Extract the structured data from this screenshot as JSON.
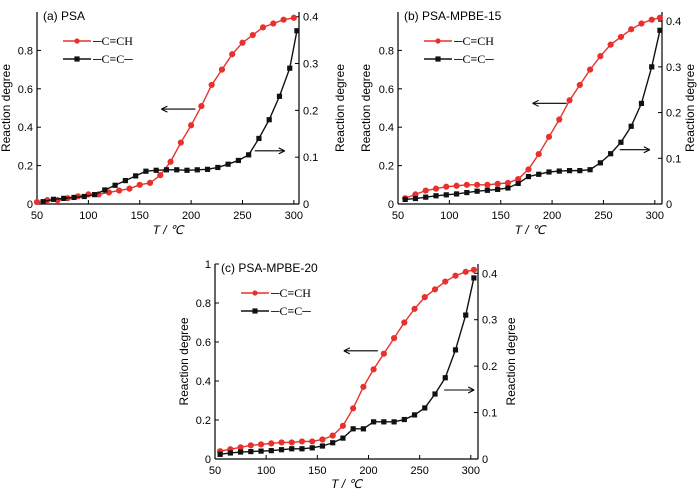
{
  "chart_data": [
    {
      "type": "line",
      "title": "(a)  PSA",
      "xlabel": "T / ℃",
      "ylabel": "Reaction degree",
      "y2label": "Reaction degree",
      "xlim": [
        50,
        305
      ],
      "ylim": [
        0,
        1.0
      ],
      "y2lim": [
        0,
        0.41
      ],
      "xticks": [
        50,
        100,
        150,
        200,
        250,
        300
      ],
      "yticks": [
        0,
        0.2,
        0.4,
        0.6,
        0.8
      ],
      "y2ticks": [
        0,
        0.1,
        0.2,
        0.3,
        0.4
      ],
      "legend_position": "top-left",
      "series": [
        {
          "name": "─C≡CH",
          "color": "#e8312c",
          "marker": "circle",
          "axis": "left",
          "x": [
            50,
            60,
            70,
            80,
            90,
            100,
            110,
            120,
            130,
            140,
            150,
            160,
            170,
            180,
            190,
            200,
            210,
            220,
            230,
            240,
            250,
            260,
            270,
            280,
            290,
            300
          ],
          "values": [
            0.01,
            0.02,
            0.02,
            0.03,
            0.04,
            0.05,
            0.05,
            0.06,
            0.07,
            0.08,
            0.1,
            0.11,
            0.15,
            0.22,
            0.32,
            0.41,
            0.51,
            0.62,
            0.7,
            0.78,
            0.84,
            0.88,
            0.92,
            0.94,
            0.96,
            0.97
          ]
        },
        {
          "name": "─C≡C─",
          "color": "#111111",
          "marker": "square",
          "axis": "right",
          "x": [
            56,
            66,
            76,
            86,
            96,
            106,
            116,
            126,
            136,
            146,
            156,
            166,
            176,
            186,
            196,
            206,
            216,
            226,
            236,
            246,
            256,
            266,
            276,
            286,
            296,
            303
          ],
          "values": [
            0.005,
            0.01,
            0.012,
            0.014,
            0.016,
            0.02,
            0.03,
            0.04,
            0.05,
            0.06,
            0.07,
            0.072,
            0.073,
            0.073,
            0.072,
            0.073,
            0.074,
            0.078,
            0.085,
            0.093,
            0.105,
            0.14,
            0.18,
            0.23,
            0.29,
            0.37
          ]
        }
      ],
      "annotations": [
        {
          "text": "arrow pointing to left axis",
          "series": "─C≡CH"
        },
        {
          "text": "arrow pointing to right axis",
          "series": "─C≡C─"
        }
      ]
    },
    {
      "type": "line",
      "title": "(b)  PSA-MPBE-15",
      "xlabel": "T / ℃",
      "ylabel": "Reaction degree",
      "y2label": "Reaction degree",
      "xlim": [
        50,
        307
      ],
      "ylim": [
        0,
        1.0
      ],
      "y2lim": [
        0,
        0.42
      ],
      "xticks": [
        50,
        100,
        150,
        200,
        250,
        300
      ],
      "yticks": [
        0,
        0.2,
        0.4,
        0.6,
        0.8
      ],
      "y2ticks": [
        0,
        0.1,
        0.2,
        0.3,
        0.4
      ],
      "legend_position": "top-left",
      "series": [
        {
          "name": "─C≡CH",
          "color": "#e8312c",
          "marker": "circle",
          "axis": "left",
          "x": [
            57,
            67,
            77,
            87,
            97,
            107,
            117,
            127,
            137,
            147,
            157,
            167,
            177,
            187,
            197,
            207,
            217,
            227,
            237,
            247,
            257,
            267,
            277,
            287,
            297,
            305
          ],
          "values": [
            0.03,
            0.05,
            0.07,
            0.08,
            0.09,
            0.095,
            0.1,
            0.1,
            0.1,
            0.105,
            0.11,
            0.13,
            0.18,
            0.26,
            0.35,
            0.44,
            0.54,
            0.62,
            0.7,
            0.77,
            0.83,
            0.87,
            0.91,
            0.94,
            0.96,
            0.97
          ]
        },
        {
          "name": "─C≡C─",
          "color": "#111111",
          "marker": "square",
          "axis": "right",
          "x": [
            57,
            67,
            77,
            87,
            97,
            107,
            117,
            127,
            137,
            147,
            157,
            167,
            177,
            187,
            197,
            207,
            217,
            227,
            237,
            247,
            257,
            267,
            277,
            287,
            297,
            305
          ],
          "values": [
            0.01,
            0.012,
            0.015,
            0.018,
            0.02,
            0.022,
            0.025,
            0.028,
            0.03,
            0.032,
            0.035,
            0.045,
            0.06,
            0.065,
            0.07,
            0.072,
            0.073,
            0.073,
            0.075,
            0.09,
            0.11,
            0.135,
            0.17,
            0.22,
            0.3,
            0.38
          ]
        }
      ],
      "annotations": [
        {
          "text": "arrow pointing to left axis",
          "series": "─C≡CH"
        },
        {
          "text": "arrow pointing to right axis",
          "series": "─C≡C─"
        }
      ]
    },
    {
      "type": "line",
      "title": "(c)  PSA-MPBE-20",
      "xlabel": "T / ℃",
      "ylabel": "Reaction degree",
      "y2label": "Reaction degree",
      "xlim": [
        50,
        307
      ],
      "ylim": [
        0,
        1.0
      ],
      "y2lim": [
        0,
        0.42
      ],
      "xticks": [
        50,
        100,
        150,
        200,
        250,
        300
      ],
      "yticks": [
        0,
        0.2,
        0.4,
        0.6,
        0.8,
        1.0
      ],
      "y2ticks": [
        0,
        0.1,
        0.2,
        0.3,
        0.4
      ],
      "legend_position": "top-left",
      "series": [
        {
          "name": "─C≡CH",
          "color": "#e8312c",
          "marker": "circle",
          "axis": "left",
          "x": [
            55,
            65,
            75,
            85,
            95,
            105,
            115,
            125,
            135,
            145,
            155,
            165,
            175,
            185,
            195,
            205,
            215,
            225,
            235,
            245,
            255,
            265,
            275,
            285,
            295,
            303
          ],
          "values": [
            0.04,
            0.05,
            0.06,
            0.07,
            0.075,
            0.08,
            0.085,
            0.085,
            0.09,
            0.09,
            0.1,
            0.12,
            0.17,
            0.26,
            0.37,
            0.46,
            0.54,
            0.62,
            0.7,
            0.77,
            0.83,
            0.87,
            0.91,
            0.94,
            0.96,
            0.97
          ]
        },
        {
          "name": "─C≡C─",
          "color": "#111111",
          "marker": "square",
          "axis": "right",
          "x": [
            55,
            65,
            75,
            85,
            95,
            105,
            115,
            125,
            135,
            145,
            155,
            165,
            175,
            185,
            195,
            205,
            215,
            225,
            235,
            245,
            255,
            265,
            275,
            285,
            295,
            303
          ],
          "values": [
            0.01,
            0.013,
            0.015,
            0.016,
            0.017,
            0.018,
            0.02,
            0.022,
            0.022,
            0.024,
            0.028,
            0.035,
            0.045,
            0.065,
            0.065,
            0.08,
            0.08,
            0.08,
            0.085,
            0.095,
            0.11,
            0.14,
            0.175,
            0.235,
            0.31,
            0.39
          ]
        }
      ],
      "annotations": [
        {
          "text": "arrow pointing to left axis",
          "series": "─C≡CH"
        },
        {
          "text": "arrow pointing to right axis",
          "series": "─C≡C─"
        }
      ]
    }
  ]
}
